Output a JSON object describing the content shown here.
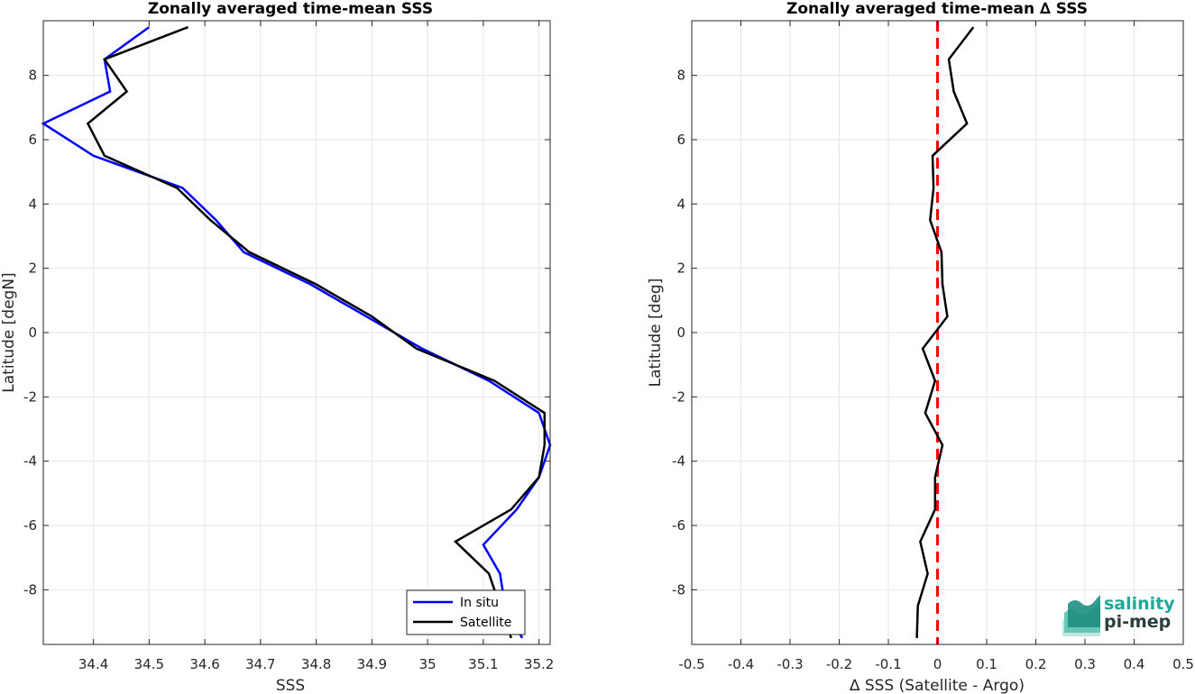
{
  "chart_data": [
    {
      "type": "line",
      "title": "Zonally averaged time-mean SSS",
      "xlabel": "SSS",
      "ylabel": "Latitude [degN]",
      "xlim": [
        34.31,
        35.22
      ],
      "ylim": [
        -9.7,
        9.7
      ],
      "xticks": [
        34.4,
        34.5,
        34.6,
        34.7,
        34.8,
        34.9,
        35,
        35.1,
        35.2
      ],
      "yticks": [
        -8,
        -6,
        -4,
        -2,
        0,
        2,
        4,
        6,
        8
      ],
      "grid": true,
      "legend": "bottom-right",
      "series": [
        {
          "name": "In situ",
          "color": "#0000ff",
          "points": [
            [
              34.5,
              9.5
            ],
            [
              34.42,
              8.5
            ],
            [
              34.43,
              7.5
            ],
            [
              34.31,
              6.5
            ],
            [
              34.4,
              5.5
            ],
            [
              34.56,
              4.5
            ],
            [
              34.62,
              3.5
            ],
            [
              34.67,
              2.5
            ],
            [
              34.79,
              1.5
            ],
            [
              34.9,
              0.4
            ],
            [
              34.99,
              -0.5
            ],
            [
              35.11,
              -1.5
            ],
            [
              35.2,
              -2.5
            ],
            [
              35.22,
              -3.5
            ],
            [
              35.2,
              -4.5
            ],
            [
              35.16,
              -5.5
            ],
            [
              35.1,
              -6.6
            ],
            [
              35.13,
              -7.5
            ],
            [
              35.14,
              -8.6
            ],
            [
              35.17,
              -9.5
            ]
          ]
        },
        {
          "name": "Satellite",
          "color": "#000000",
          "points": [
            [
              34.57,
              9.5
            ],
            [
              34.42,
              8.5
            ],
            [
              34.46,
              7.5
            ],
            [
              34.39,
              6.5
            ],
            [
              34.42,
              5.5
            ],
            [
              34.55,
              4.5
            ],
            [
              34.61,
              3.5
            ],
            [
              34.68,
              2.5
            ],
            [
              34.8,
              1.5
            ],
            [
              34.9,
              0.5
            ],
            [
              34.98,
              -0.5
            ],
            [
              35.12,
              -1.5
            ],
            [
              35.21,
              -2.5
            ],
            [
              35.21,
              -3.5
            ],
            [
              35.2,
              -4.5
            ],
            [
              35.15,
              -5.5
            ],
            [
              35.05,
              -6.5
            ],
            [
              35.11,
              -7.5
            ],
            [
              35.13,
              -8.5
            ],
            [
              35.15,
              -9.5
            ]
          ]
        }
      ]
    },
    {
      "type": "line",
      "title": "Zonally averaged time-mean ∆ SSS",
      "xlabel": "∆ SSS (Satellite - Argo)",
      "ylabel": "Latitude [deg]",
      "xlim": [
        -0.5,
        0.5
      ],
      "ylim": [
        -9.7,
        9.7
      ],
      "xticks": [
        -0.5,
        -0.4,
        -0.3,
        -0.2,
        -0.1,
        0,
        0.1,
        0.2,
        0.3,
        0.4,
        0.5
      ],
      "yticks": [
        -8,
        -6,
        -4,
        -2,
        0,
        2,
        4,
        6,
        8
      ],
      "grid": true,
      "reference_line": {
        "x": 0,
        "color": "#ff0000",
        "style": "dashed"
      },
      "series": [
        {
          "color": "#000000",
          "points": [
            [
              0.073,
              9.5
            ],
            [
              0.023,
              8.5
            ],
            [
              0.033,
              7.5
            ],
            [
              0.06,
              6.5
            ],
            [
              -0.01,
              5.5
            ],
            [
              -0.008,
              4.5
            ],
            [
              -0.015,
              3.5
            ],
            [
              0.008,
              2.5
            ],
            [
              0.01,
              1.5
            ],
            [
              0.02,
              0.5
            ],
            [
              -0.03,
              -0.5
            ],
            [
              -0.005,
              -1.5
            ],
            [
              -0.025,
              -2.5
            ],
            [
              0.01,
              -3.5
            ],
            [
              -0.005,
              -4.5
            ],
            [
              -0.005,
              -5.5
            ],
            [
              -0.035,
              -6.5
            ],
            [
              -0.02,
              -7.5
            ],
            [
              -0.04,
              -8.5
            ],
            [
              -0.042,
              -9.5
            ]
          ]
        }
      ]
    }
  ],
  "logo": {
    "line1": "salinity",
    "line2": "pi-mep"
  }
}
